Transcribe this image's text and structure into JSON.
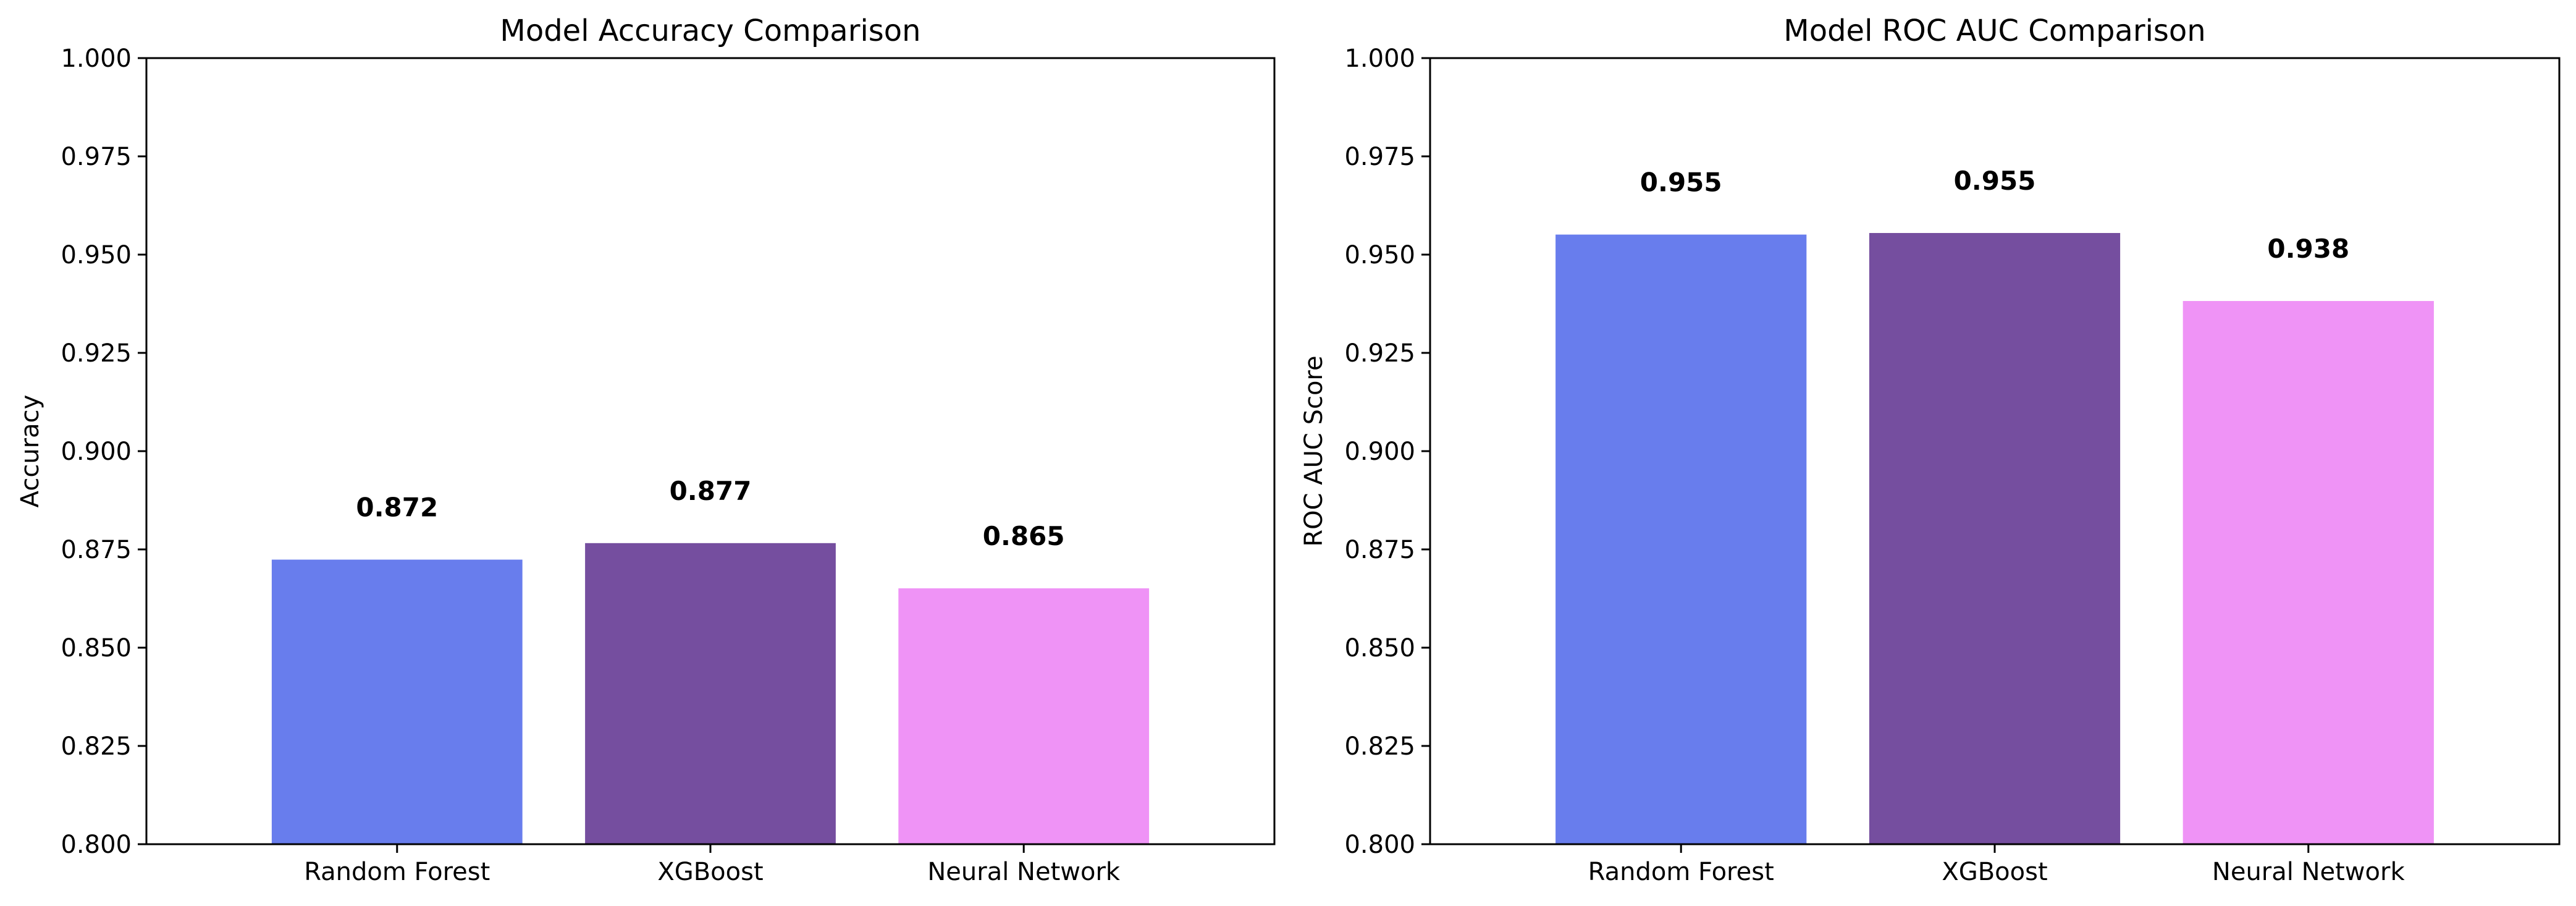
{
  "chart_data": [
    {
      "type": "bar",
      "title": "Model Accuracy Comparison",
      "xlabel": "",
      "ylabel": "Accuracy",
      "ylim": [
        0.8,
        1.0
      ],
      "yticks": [
        "0.800",
        "0.825",
        "0.850",
        "0.875",
        "0.900",
        "0.925",
        "0.950",
        "0.975",
        "1.000"
      ],
      "categories": [
        "Random Forest",
        "XGBoost",
        "Neural Network"
      ],
      "values": [
        0.8724,
        0.8766,
        0.8651
      ],
      "data_labels": [
        "0.872",
        "0.877",
        "0.865"
      ],
      "colors": [
        "#687ded",
        "#754e9f",
        "#ef93f6"
      ],
      "grid": false
    },
    {
      "type": "bar",
      "title": "Model ROC AUC Comparison",
      "xlabel": "",
      "ylabel": "ROC AUC Score",
      "ylim": [
        0.8,
        1.0
      ],
      "yticks": [
        "0.800",
        "0.825",
        "0.850",
        "0.875",
        "0.900",
        "0.925",
        "0.950",
        "0.975",
        "1.000"
      ],
      "categories": [
        "Random Forest",
        "XGBoost",
        "Neural Network"
      ],
      "values": [
        0.9551,
        0.9555,
        0.9382
      ],
      "data_labels": [
        "0.955",
        "0.955",
        "0.938"
      ],
      "colors": [
        "#687ded",
        "#754e9f",
        "#ef93f6"
      ],
      "grid": false
    }
  ]
}
